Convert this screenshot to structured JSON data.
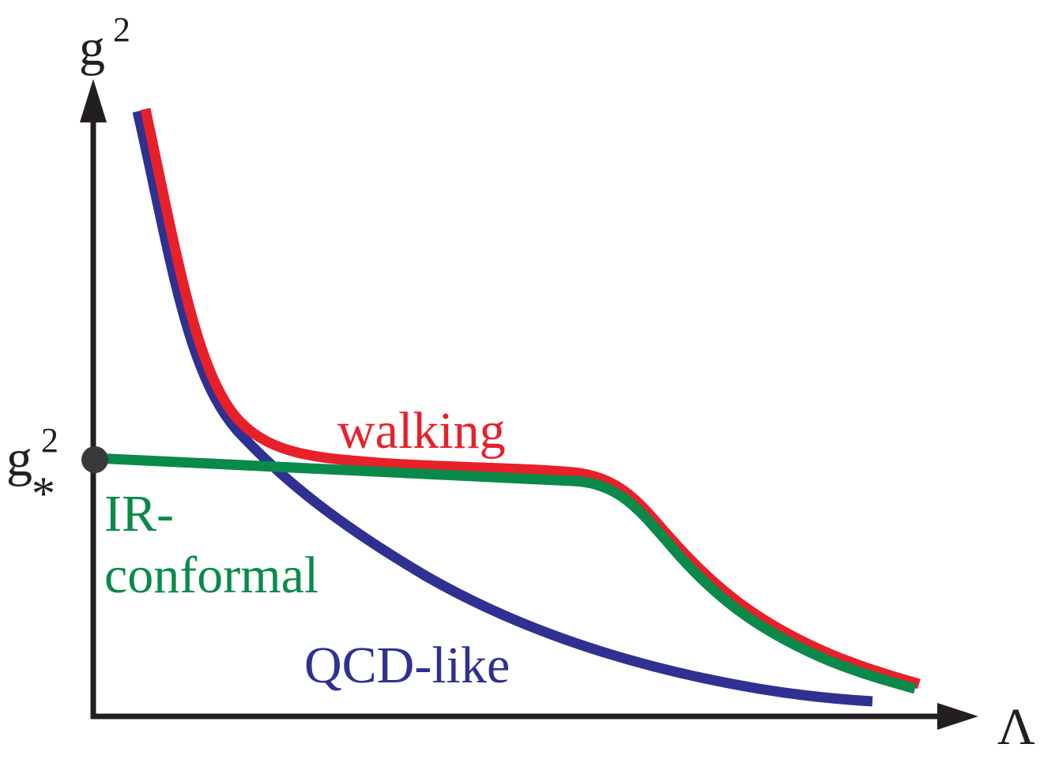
{
  "axes": {
    "y_label": {
      "base": "g",
      "sup": "2"
    },
    "x_label": "Λ",
    "fixed_point_label": {
      "base": "g",
      "sub": "*",
      "sup": "2"
    }
  },
  "curves": {
    "walking": {
      "label": "walking",
      "color": "#e8202a"
    },
    "ir_conformal": {
      "label_line1": "IR-",
      "label_line2": "conformal",
      "color": "#0a8a4a"
    },
    "qcd_like": {
      "label": "QCD-like",
      "color": "#2e3192"
    }
  },
  "colors": {
    "axis": "#231f20",
    "fixed_point_marker": "#3a3a3c"
  }
}
